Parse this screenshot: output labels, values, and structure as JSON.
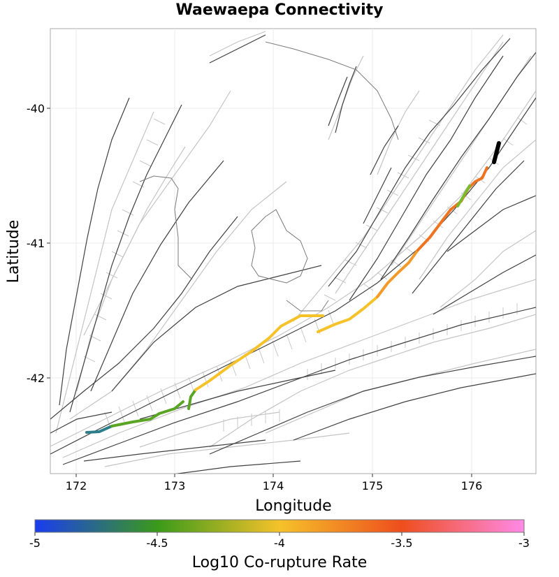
{
  "title": "Waewaepa Connectivity",
  "map": {
    "xlabel": "Longitude",
    "ylabel": "Latitude",
    "lon_range": [
      171.75,
      176.55
    ],
    "lat_range": [
      -42.7,
      -39.57
    ],
    "x_ticks": [
      "172",
      "173",
      "174",
      "175",
      "176"
    ],
    "y_ticks": [
      "-40",
      "-41",
      "-42"
    ],
    "grid": true
  },
  "colorbar": {
    "title": "Log10 Co-rupture Rate",
    "ticks": [
      "-5",
      "-4.5",
      "-4",
      "-3.5",
      "-3"
    ],
    "colors": [
      "#1a3cf0",
      "#3a9a1a",
      "#f5c22a",
      "#ee4e1d",
      "#ff8ae8"
    ]
  },
  "colors": {
    "fault_trace": "#404040",
    "fault_surface": "#bdbdbd",
    "coastline": "#7a7a7a",
    "target_fault": "#000000"
  }
}
